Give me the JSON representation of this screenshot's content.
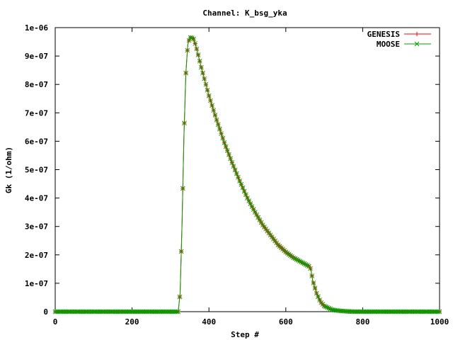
{
  "chart_data": {
    "type": "line",
    "title": "Channel: K_bsg_yka",
    "xlabel": "Step #",
    "ylabel": "Gk (1/ohm)",
    "xlim": [
      0,
      1000
    ],
    "ylim": [
      0,
      1e-06
    ],
    "xticks": [
      0,
      200,
      400,
      600,
      800,
      1000
    ],
    "xtick_labels": [
      "0",
      "200",
      "400",
      "600",
      "800",
      "1000"
    ],
    "yticks": [
      0,
      1e-07,
      2e-07,
      3e-07,
      4e-07,
      5e-07,
      6e-07,
      7e-07,
      8e-07,
      9e-07,
      1e-06
    ],
    "ytick_labels": [
      "0",
      "1e-07",
      "2e-07",
      "3e-07",
      "4e-07",
      "5e-07",
      "6e-07",
      "7e-07",
      "8e-07",
      "9e-07",
      "1e-06"
    ],
    "grid": false,
    "legend_position": "top-right",
    "x": [
      0,
      100,
      200,
      300,
      320,
      325,
      330,
      335,
      340,
      345,
      350,
      355,
      360,
      365,
      370,
      380,
      390,
      400,
      420,
      440,
      460,
      480,
      500,
      520,
      540,
      560,
      580,
      600,
      620,
      640,
      660,
      665,
      670,
      680,
      690,
      700,
      720,
      740,
      760,
      780,
      800,
      900,
      1000
    ],
    "series": [
      {
        "name": "GENESIS",
        "color": "#ff0000",
        "marker": "plus",
        "values": [
          0,
          0,
          0,
          0,
          0,
          6.5e-08,
          3.1e-07,
          6.2e-07,
          8.4e-07,
          9.4e-07,
          9.65e-07,
          9.65e-07,
          9.6e-07,
          9.4e-07,
          9.15e-07,
          8.6e-07,
          8.1e-07,
          7.6e-07,
          6.75e-07,
          5.95e-07,
          5.25e-07,
          4.6e-07,
          4e-07,
          3.5e-07,
          3.05e-07,
          2.7e-07,
          2.35e-07,
          2.1e-07,
          1.9e-07,
          1.75e-07,
          1.6e-07,
          1.5e-07,
          1.1e-07,
          6.5e-08,
          3.5e-08,
          2e-08,
          7e-09,
          3e-09,
          1e-09,
          0,
          0,
          0,
          0
        ]
      },
      {
        "name": "MOOSE",
        "color": "#00a000",
        "marker": "cross",
        "values": [
          0,
          0,
          0,
          0,
          0,
          6.5e-08,
          3.1e-07,
          6.2e-07,
          8.4e-07,
          9.4e-07,
          9.65e-07,
          9.65e-07,
          9.6e-07,
          9.4e-07,
          9.15e-07,
          8.6e-07,
          8.1e-07,
          7.6e-07,
          6.75e-07,
          5.95e-07,
          5.25e-07,
          4.6e-07,
          4e-07,
          3.5e-07,
          3.05e-07,
          2.7e-07,
          2.35e-07,
          2.1e-07,
          1.9e-07,
          1.75e-07,
          1.6e-07,
          1.5e-07,
          1.1e-07,
          6.5e-08,
          3.5e-08,
          2e-08,
          7e-09,
          3e-09,
          1e-09,
          0,
          0,
          0,
          0
        ]
      }
    ]
  }
}
